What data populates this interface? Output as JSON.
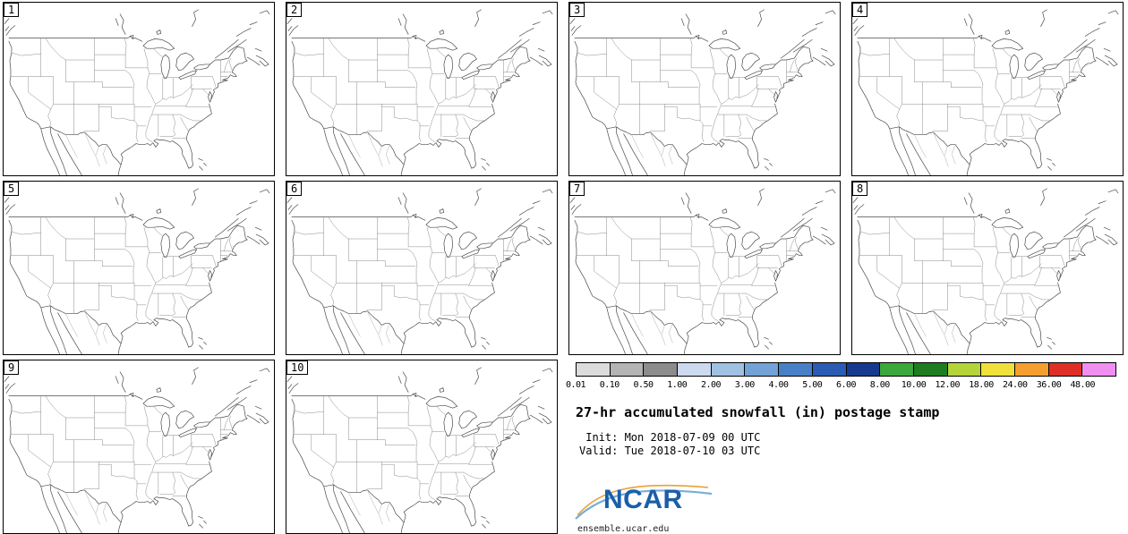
{
  "panels": {
    "labels": [
      "1",
      "2",
      "3",
      "4",
      "5",
      "6",
      "7",
      "8",
      "9",
      "10"
    ]
  },
  "colorbar": {
    "ticks": [
      "0.01",
      "0.10",
      "0.50",
      "1.00",
      "2.00",
      "3.00",
      "4.00",
      "5.00",
      "6.00",
      "8.00",
      "10.00",
      "12.00",
      "18.00",
      "24.00",
      "36.00",
      "48.00"
    ],
    "colors": [
      "#dcdcdc",
      "#b4b4b4",
      "#8c8c8c",
      "#ccd9ee",
      "#9fc2e4",
      "#72a3d7",
      "#4880c8",
      "#2a5cb5",
      "#17398f",
      "#3aa83a",
      "#1f7d1f",
      "#b5d437",
      "#f0e13a",
      "#f5a02e",
      "#df2f26",
      "#f08ff0"
    ]
  },
  "legend": {
    "title": "27-hr accumulated snowfall (in) postage stamp",
    "init_line": " Init: Mon 2018-07-09 00 UTC",
    "valid_line": "Valid: Tue 2018-07-10 03 UTC",
    "logo_text": "NCAR",
    "logo_color": "#1b5ea8",
    "footer": "ensemble.ucar.edu"
  }
}
